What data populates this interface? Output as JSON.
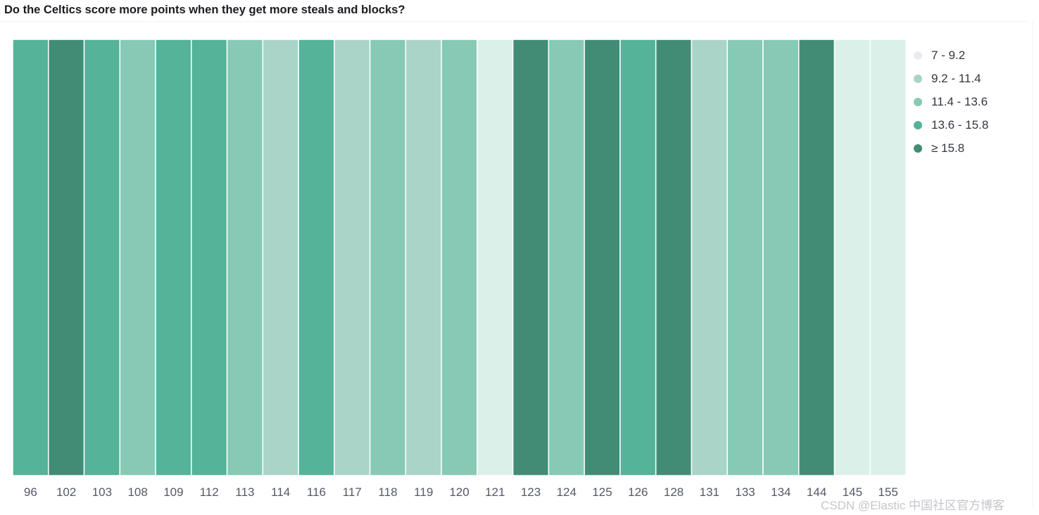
{
  "title": "Do the Celtics score more points when they get more steals and blocks?",
  "watermark": "CSDN @Elastic 中国社区官方博客",
  "colors": {
    "c1": "#dcf0ea",
    "c2": "#aad4c8",
    "c3": "#86cab5",
    "c4": "#54b399",
    "c5": "#428c76",
    "tick_text": "#535966"
  },
  "legend": [
    {
      "label": "7 - 9.2",
      "color": "#e9ecef"
    },
    {
      "label": "9.2 - 11.4",
      "color": "#aad4c8"
    },
    {
      "label": "11.4 - 13.6",
      "color": "#86cab5"
    },
    {
      "label": "13.6 - 15.8",
      "color": "#54b399"
    },
    {
      "label": "≥ 15.8",
      "color": "#428c76"
    }
  ],
  "chart_data": {
    "type": "heatmap",
    "title": "Do the Celtics score more points when they get more steals and blocks?",
    "categories": [
      "96",
      "102",
      "103",
      "108",
      "109",
      "112",
      "113",
      "114",
      "116",
      "117",
      "118",
      "119",
      "120",
      "121",
      "123",
      "124",
      "125",
      "126",
      "128",
      "131",
      "133",
      "134",
      "144",
      "145",
      "155"
    ],
    "bins": [
      "7 - 9.2",
      "9.2 - 11.4",
      "11.4 - 13.6",
      "13.6 - 15.8",
      "≥ 15.8"
    ],
    "values": [
      15,
      17,
      15,
      13,
      15,
      15,
      13,
      11,
      15,
      11,
      13,
      11,
      13,
      8,
      17,
      13,
      17,
      15,
      17,
      11,
      13,
      13,
      17,
      8,
      8
    ],
    "legend_position": "right"
  }
}
